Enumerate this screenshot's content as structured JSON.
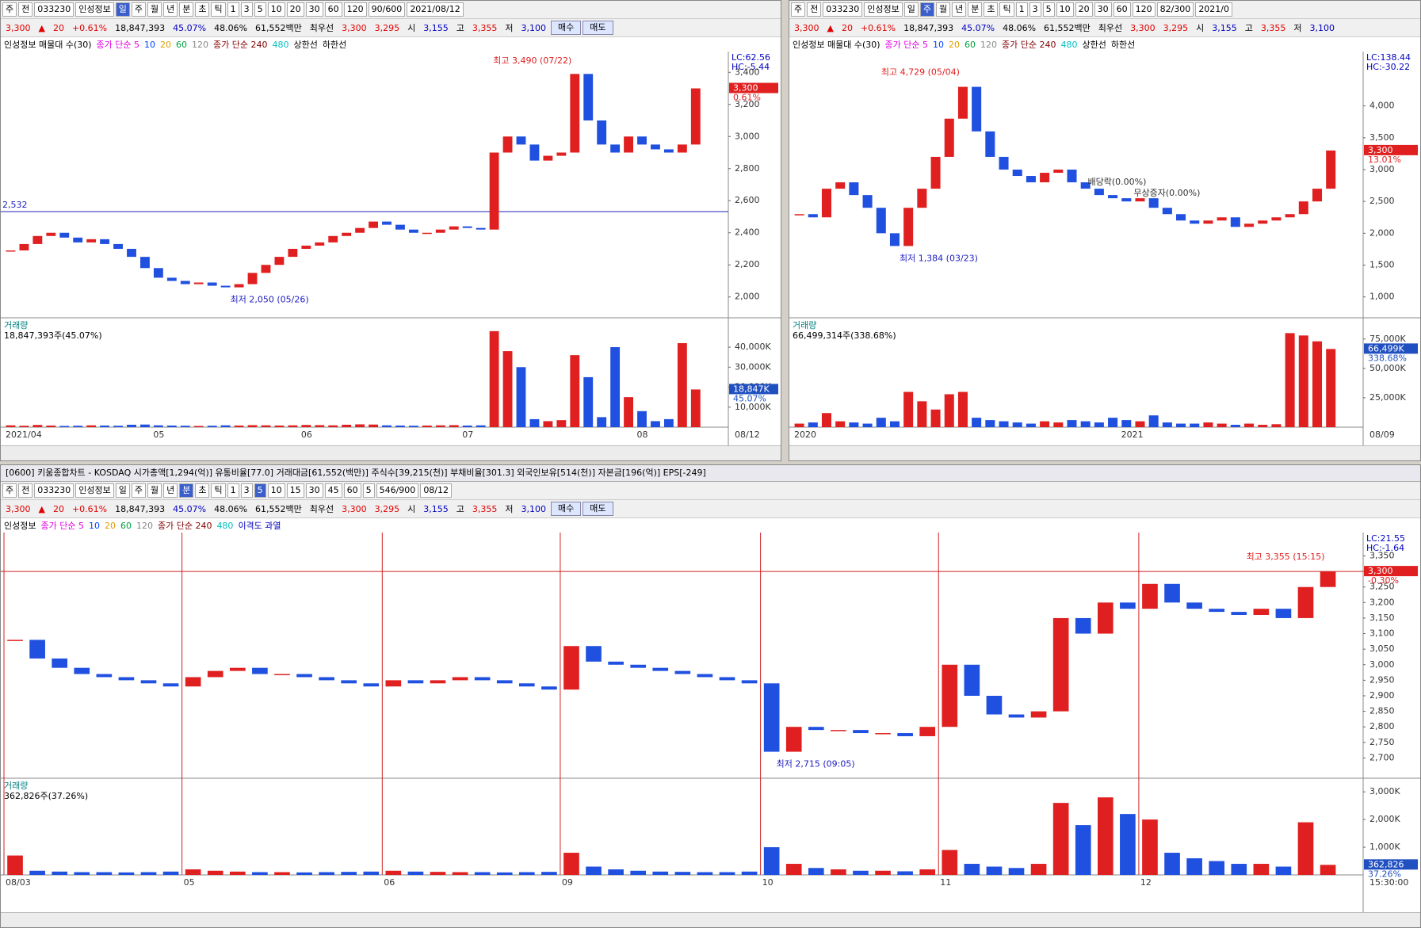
{
  "windows": [
    {
      "toolbar": [
        "주",
        "전",
        "033230",
        "인성정보",
        "일",
        "주",
        "월",
        "년",
        "분",
        "초",
        "틱",
        "1",
        "3",
        "5",
        "10",
        "20",
        "30",
        "60",
        "120",
        "90/600",
        "2021/08/12"
      ],
      "selected": [
        4
      ],
      "quote": [
        {
          "text": "3,300",
          "color": "#e00000"
        },
        {
          "text": "▲",
          "color": "#e00000"
        },
        {
          "text": "20",
          "color": "#e00000"
        },
        {
          "text": "+0.61%",
          "color": "#e00000"
        },
        {
          "text": "18,847,393"
        },
        {
          "text": "45.07%",
          "color": "#0000c0"
        },
        {
          "text": "48.06%"
        },
        {
          "text": "61,552백만"
        },
        {
          "text": "최우선"
        },
        {
          "text": "3,300",
          "color": "#e00000"
        },
        {
          "text": "3,295",
          "color": "#e00000"
        },
        {
          "text": "시"
        },
        {
          "text": "3,155",
          "color": "#0000c0"
        },
        {
          "text": "고"
        },
        {
          "text": "3,355",
          "color": "#e00000"
        },
        {
          "text": "저"
        },
        {
          "text": "3,100",
          "color": "#0000c0"
        }
      ],
      "actions": [
        "매수",
        "매도"
      ],
      "legend": [
        {
          "text": "인성정보 매물대 수(30)",
          "color": "#000000"
        },
        {
          "text": "종가 단순 5",
          "color": "#e000e0"
        },
        {
          "text": "10",
          "color": "#0040ff"
        },
        {
          "text": "20",
          "color": "#e0a000"
        },
        {
          "text": "60",
          "color": "#00a040"
        },
        {
          "text": "120",
          "color": "#888888"
        },
        {
          "text": "종가 단순 240",
          "color": "#800000"
        },
        {
          "text": "480",
          "color": "#00c0c0"
        },
        {
          "text": "상한선",
          "color": "#000000"
        },
        {
          "text": "하한선",
          "color": "#000000"
        }
      ],
      "axis_info": [
        "LC:62.56",
        "HC:-5.44"
      ],
      "price": {
        "type": "candlestick",
        "values": [
          2290,
          2330,
          2380,
          2400,
          2370,
          2340,
          2360,
          2330,
          2300,
          2250,
          2180,
          2120,
          2100,
          2080,
          2090,
          2070,
          2060,
          2080,
          2150,
          2200,
          2250,
          2300,
          2320,
          2340,
          2380,
          2400,
          2430,
          2470,
          2450,
          2420,
          2400,
          2400,
          2420,
          2440,
          2430,
          2420,
          2900,
          3000,
          2950,
          2850,
          2880,
          2900,
          3390,
          3100,
          2950,
          2900,
          3000,
          2950,
          2920,
          2900,
          2950,
          3300
        ],
        "categories": [
          "2021/04",
          null,
          null,
          null,
          null,
          null,
          null,
          null,
          null,
          null,
          null,
          "05",
          null,
          null,
          null,
          null,
          null,
          null,
          null,
          null,
          null,
          null,
          "06",
          null,
          null,
          null,
          null,
          null,
          null,
          null,
          null,
          null,
          null,
          null,
          "07",
          null,
          null,
          null,
          null,
          null,
          null,
          null,
          null,
          null,
          null,
          null,
          null,
          "08",
          null,
          null,
          null,
          null
        ],
        "ylim": [
          1890,
          3510
        ],
        "yticks": [
          {
            "value": 2000,
            "label": "2,000"
          },
          {
            "value": 2200,
            "label": "2,200"
          },
          {
            "value": 2400,
            "label": "2,400"
          },
          {
            "value": 2600,
            "label": "2,600"
          },
          {
            "value": 2800,
            "label": "2,800"
          },
          {
            "value": 3000,
            "label": "3,000"
          },
          {
            "value": 3200,
            "label": "3,200"
          },
          {
            "value": 3400,
            "label": "3,400"
          }
        ],
        "last_label": "3,300",
        "change_label": "0.61%",
        "high_label": "최고 3,490 (07/22)",
        "low_label": "최저 2,050 (05/26)",
        "hline": {
          "value": 2532,
          "label": "2,532"
        },
        "last_date": "08/12"
      },
      "volume": {
        "type": "bar",
        "title": "거래량",
        "summary": "18,847,393주(45.07%)",
        "values": [
          900,
          700,
          1100,
          800,
          600,
          700,
          900,
          800,
          700,
          1200,
          1300,
          900,
          800,
          700,
          600,
          700,
          900,
          800,
          1000,
          900,
          800,
          900,
          1100,
          1000,
          900,
          1200,
          1400,
          1300,
          900,
          800,
          700,
          800,
          900,
          1000,
          800,
          900,
          48000,
          38000,
          30000,
          4000,
          3000,
          3500,
          36000,
          25000,
          5000,
          40000,
          15000,
          8000,
          3000,
          4000,
          42000,
          18847.393
        ],
        "ylim": [
          0,
          52300
        ],
        "yticks": [
          {
            "value": 10000,
            "label": "10,000K"
          },
          {
            "value": 20000,
            "label": "20,000K"
          },
          {
            "value": 30000,
            "label": "30,000K"
          },
          {
            "value": 40000,
            "label": "40,000K"
          }
        ],
        "last_label": "18,847K",
        "pct_label": "45.07%"
      }
    },
    {
      "toolbar": [
        "주",
        "전",
        "033230",
        "인성정보",
        "일",
        "주",
        "월",
        "년",
        "분",
        "초",
        "틱",
        "1",
        "3",
        "5",
        "10",
        "20",
        "30",
        "60",
        "120",
        "82/300",
        "2021/0"
      ],
      "selected": [
        5
      ],
      "quote": [
        {
          "text": "3,300",
          "color": "#e00000"
        },
        {
          "text": "▲",
          "color": "#e00000"
        },
        {
          "text": "20",
          "color": "#e00000"
        },
        {
          "text": "+0.61%",
          "color": "#e00000"
        },
        {
          "text": "18,847,393"
        },
        {
          "text": "45.07%",
          "color": "#0000c0"
        },
        {
          "text": "48.06%"
        },
        {
          "text": "61,552백만"
        },
        {
          "text": "최우선"
        },
        {
          "text": "3,300",
          "color": "#e00000"
        },
        {
          "text": "3,295",
          "color": "#e00000"
        },
        {
          "text": "시"
        },
        {
          "text": "3,155",
          "color": "#0000c0"
        },
        {
          "text": "고"
        },
        {
          "text": "3,355",
          "color": "#e00000"
        },
        {
          "text": "저"
        },
        {
          "text": "3,100",
          "color": "#0000c0"
        }
      ],
      "actions": [],
      "legend": [
        {
          "text": "인성정보 매물대 수(30)",
          "color": "#000000"
        },
        {
          "text": "종가 단순 5",
          "color": "#e000e0"
        },
        {
          "text": "10",
          "color": "#0040ff"
        },
        {
          "text": "20",
          "color": "#e0a000"
        },
        {
          "text": "60",
          "color": "#00a040"
        },
        {
          "text": "120",
          "color": "#888888"
        },
        {
          "text": "종가 단순 240",
          "color": "#800000"
        },
        {
          "text": "480",
          "color": "#00c0c0"
        },
        {
          "text": "상한선",
          "color": "#000000"
        },
        {
          "text": "하한선",
          "color": "#000000"
        }
      ],
      "axis_info": [
        "LC:138.44",
        "HC:-30.22"
      ],
      "price": {
        "type": "candlestick",
        "values": [
          2300,
          2250,
          2700,
          2800,
          2600,
          2400,
          2000,
          1800,
          2400,
          2700,
          3200,
          3800,
          4300,
          3600,
          3200,
          3000,
          2900,
          2800,
          2950,
          3000,
          2800,
          2700,
          2600,
          2550,
          2500,
          2550,
          2400,
          2300,
          2200,
          2150,
          2200,
          2250,
          2100,
          2150,
          2200,
          2250,
          2300,
          2500,
          2700,
          3300
        ],
        "categories": [
          "2020",
          null,
          null,
          null,
          null,
          null,
          null,
          null,
          null,
          null,
          null,
          null,
          null,
          null,
          null,
          null,
          null,
          null,
          null,
          null,
          null,
          null,
          null,
          null,
          "2021",
          null,
          null,
          null,
          null,
          null,
          null,
          null,
          null,
          null,
          null,
          null,
          null,
          null,
          null,
          null
        ],
        "ylim": [
          722,
          4805
        ],
        "yticks": [
          {
            "value": 1000,
            "label": "1,000"
          },
          {
            "value": 1500,
            "label": "1,500"
          },
          {
            "value": 2000,
            "label": "2,000"
          },
          {
            "value": 2500,
            "label": "2,500"
          },
          {
            "value": 3000,
            "label": "3,000"
          },
          {
            "value": 3500,
            "label": "3,500"
          },
          {
            "value": 4000,
            "label": "4,000"
          }
        ],
        "last_label": "3,300",
        "change_label": "13.01%",
        "high_label": "최고 4,729 (05/04)",
        "low_label": "최저 1,384 (03/23)",
        "notes": [
          "배당락(0.00%)",
          "무상증자(0.00%)"
        ],
        "last_date": "08/09"
      },
      "volume": {
        "type": "bar",
        "title": "거래량",
        "summary": "66,499,314주(338.68%)",
        "values": [
          3000,
          4000,
          12000,
          5000,
          4000,
          3000,
          8000,
          5000,
          30000,
          22000,
          15000,
          28000,
          30000,
          8000,
          6000,
          5000,
          4000,
          3000,
          5000,
          4000,
          6000,
          5000,
          4000,
          8000,
          6000,
          5000,
          10000,
          4000,
          3000,
          3000,
          4000,
          3000,
          2000,
          3000,
          2000,
          2500,
          80000,
          78000,
          73000,
          66499.314
        ],
        "ylim": [
          0,
          89000
        ],
        "yticks": [
          {
            "value": 25000,
            "label": "25,000K"
          },
          {
            "value": 50000,
            "label": "50,000K"
          },
          {
            "value": 75000,
            "label": "75,000K"
          }
        ],
        "last_label": "66,499K",
        "pct_label": "338.68%"
      }
    },
    {
      "title": "[0600] 키움종합차트 - KOSDAQ 시가총액[1,294(억)] 유통비율[77.0] 거래대금[61,552(백만)] 주식수[39,215(천)] 부채비율[301.3] 외국인보유[514(천)] 자본금[196(억)] EPS[-249]",
      "toolbar": [
        "주",
        "전",
        "033230",
        "인성정보",
        "일",
        "주",
        "월",
        "년",
        "분",
        "초",
        "틱",
        "1",
        "3",
        "5",
        "10",
        "15",
        "30",
        "45",
        "60",
        "5",
        "546/900",
        "08/12"
      ],
      "selected": [
        8,
        13
      ],
      "quote": [
        {
          "text": "3,300",
          "color": "#e00000"
        },
        {
          "text": "▲",
          "color": "#e00000"
        },
        {
          "text": "20",
          "color": "#e00000"
        },
        {
          "text": "+0.61%",
          "color": "#e00000"
        },
        {
          "text": "18,847,393"
        },
        {
          "text": "45.07%",
          "color": "#0000c0"
        },
        {
          "text": "48.06%"
        },
        {
          "text": "61,552백만"
        },
        {
          "text": "최우선"
        },
        {
          "text": "3,300",
          "color": "#e00000"
        },
        {
          "text": "3,295",
          "color": "#e00000"
        },
        {
          "text": "시"
        },
        {
          "text": "3,155",
          "color": "#0000c0"
        },
        {
          "text": "고"
        },
        {
          "text": "3,355",
          "color": "#e00000"
        },
        {
          "text": "저"
        },
        {
          "text": "3,100",
          "color": "#0000c0"
        }
      ],
      "actions": [
        "매수",
        "매도"
      ],
      "legend": [
        {
          "text": "인성정보",
          "color": "#000000"
        },
        {
          "text": "종가 단순 5",
          "color": "#e000e0"
        },
        {
          "text": "10",
          "color": "#0040ff"
        },
        {
          "text": "20",
          "color": "#e0a000"
        },
        {
          "text": "60",
          "color": "#00a040"
        },
        {
          "text": "120",
          "color": "#888888"
        },
        {
          "text": "종가 단순 240",
          "color": "#800000"
        },
        {
          "text": "480",
          "color": "#00c0c0"
        },
        {
          "text": "이격도 과열",
          "color": "#0000c0"
        }
      ],
      "axis_info": [
        "LC:21.55",
        "HC:-1.64"
      ],
      "price": {
        "type": "candlestick",
        "day_lines": true,
        "values": [
          3080,
          3020,
          2990,
          2970,
          2960,
          2950,
          2940,
          2930,
          2960,
          2980,
          2990,
          2970,
          2970,
          2960,
          2950,
          2940,
          2930,
          2950,
          2940,
          2950,
          2960,
          2950,
          2940,
          2930,
          2920,
          3060,
          3010,
          3000,
          2990,
          2980,
          2970,
          2960,
          2950,
          2940,
          2720,
          2800,
          2790,
          2790,
          2780,
          2780,
          2770,
          2800,
          3000,
          2900,
          2840,
          2830,
          2850,
          3150,
          3100,
          3200,
          3180,
          3260,
          3200,
          3180,
          3170,
          3160,
          3180,
          3150,
          3250,
          3300
        ],
        "categories": [
          "08/03",
          null,
          null,
          null,
          null,
          null,
          null,
          null,
          "05",
          null,
          null,
          null,
          null,
          null,
          null,
          null,
          null,
          "06",
          null,
          null,
          null,
          null,
          null,
          null,
          null,
          "09",
          null,
          null,
          null,
          null,
          null,
          null,
          null,
          null,
          "10",
          null,
          null,
          null,
          null,
          null,
          null,
          null,
          "11",
          null,
          null,
          null,
          null,
          null,
          null,
          null,
          null,
          "12",
          null,
          null,
          null,
          null,
          null,
          null,
          null,
          null
        ],
        "ylim": [
          2645,
          3415
        ],
        "yticks": [
          {
            "value": 2700,
            "label": "2,700"
          },
          {
            "value": 2750,
            "label": "2,750"
          },
          {
            "value": 2800,
            "label": "2,800"
          },
          {
            "value": 2850,
            "label": "2,850"
          },
          {
            "value": 2900,
            "label": "2,900"
          },
          {
            "value": 2950,
            "label": "2,950"
          },
          {
            "value": 3000,
            "label": "3,000"
          },
          {
            "value": 3050,
            "label": "3,050"
          },
          {
            "value": 3100,
            "label": "3,100"
          },
          {
            "value": 3150,
            "label": "3,150"
          },
          {
            "value": 3200,
            "label": "3,200"
          },
          {
            "value": 3250,
            "label": "3,250"
          },
          {
            "value": 3300,
            "label": "3,300"
          },
          {
            "value": 3350,
            "label": "3,350"
          }
        ],
        "last_label": "3,300",
        "change_label": "-0.30%",
        "high_label": "최고 3,355 (15:15)",
        "low_label": "최저 2,715 (09:05)",
        "last_date": "15:30:00"
      },
      "volume": {
        "type": "bar",
        "title": "거래량",
        "summary": "362,826주(37.26%)",
        "values": [
          700,
          150,
          120,
          100,
          100,
          90,
          100,
          120,
          200,
          150,
          120,
          100,
          100,
          90,
          100,
          110,
          120,
          150,
          120,
          110,
          100,
          100,
          90,
          100,
          110,
          800,
          300,
          200,
          150,
          120,
          110,
          100,
          100,
          120,
          1000,
          400,
          250,
          200,
          150,
          150,
          130,
          200,
          900,
          400,
          300,
          250,
          400,
          2600,
          1800,
          2800,
          2200,
          2000,
          800,
          600,
          500,
          400,
          400,
          300,
          1900,
          362.826
        ],
        "ylim": [
          0,
          3320
        ],
        "yticks": [
          {
            "value": 1000,
            "label": "1,000K"
          },
          {
            "value": 2000,
            "label": "2,000K"
          },
          {
            "value": 3000,
            "label": "3,000K"
          }
        ],
        "last_label": "362,826",
        "pct_label": "37.26%"
      }
    }
  ]
}
